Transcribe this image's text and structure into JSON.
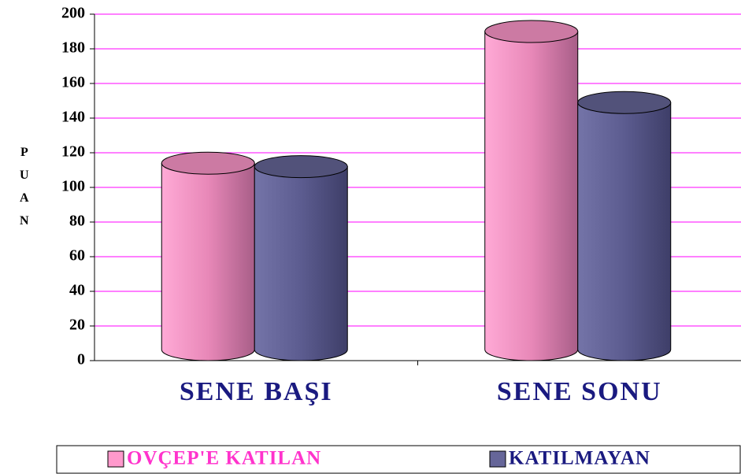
{
  "chart_data": {
    "type": "bar",
    "ylabel": "PUAN",
    "categories": [
      "SENE BAŞI",
      "SENE SONU"
    ],
    "series": [
      {
        "name": "OVÇEP'E KATILAN",
        "color": "#ff99cc",
        "legend_text_color": "#ff33cc",
        "values": [
          114,
          190
        ]
      },
      {
        "name": "KATILMAYAN",
        "color": "#666699",
        "legend_text_color": "#1a1a80",
        "values": [
          112,
          149
        ]
      }
    ],
    "ylim": [
      0,
      200
    ],
    "yticks": [
      0,
      20,
      40,
      60,
      80,
      100,
      120,
      140,
      160,
      180,
      200
    ],
    "grid": true,
    "grid_color": "#ff00ff",
    "legend": "bottom"
  }
}
